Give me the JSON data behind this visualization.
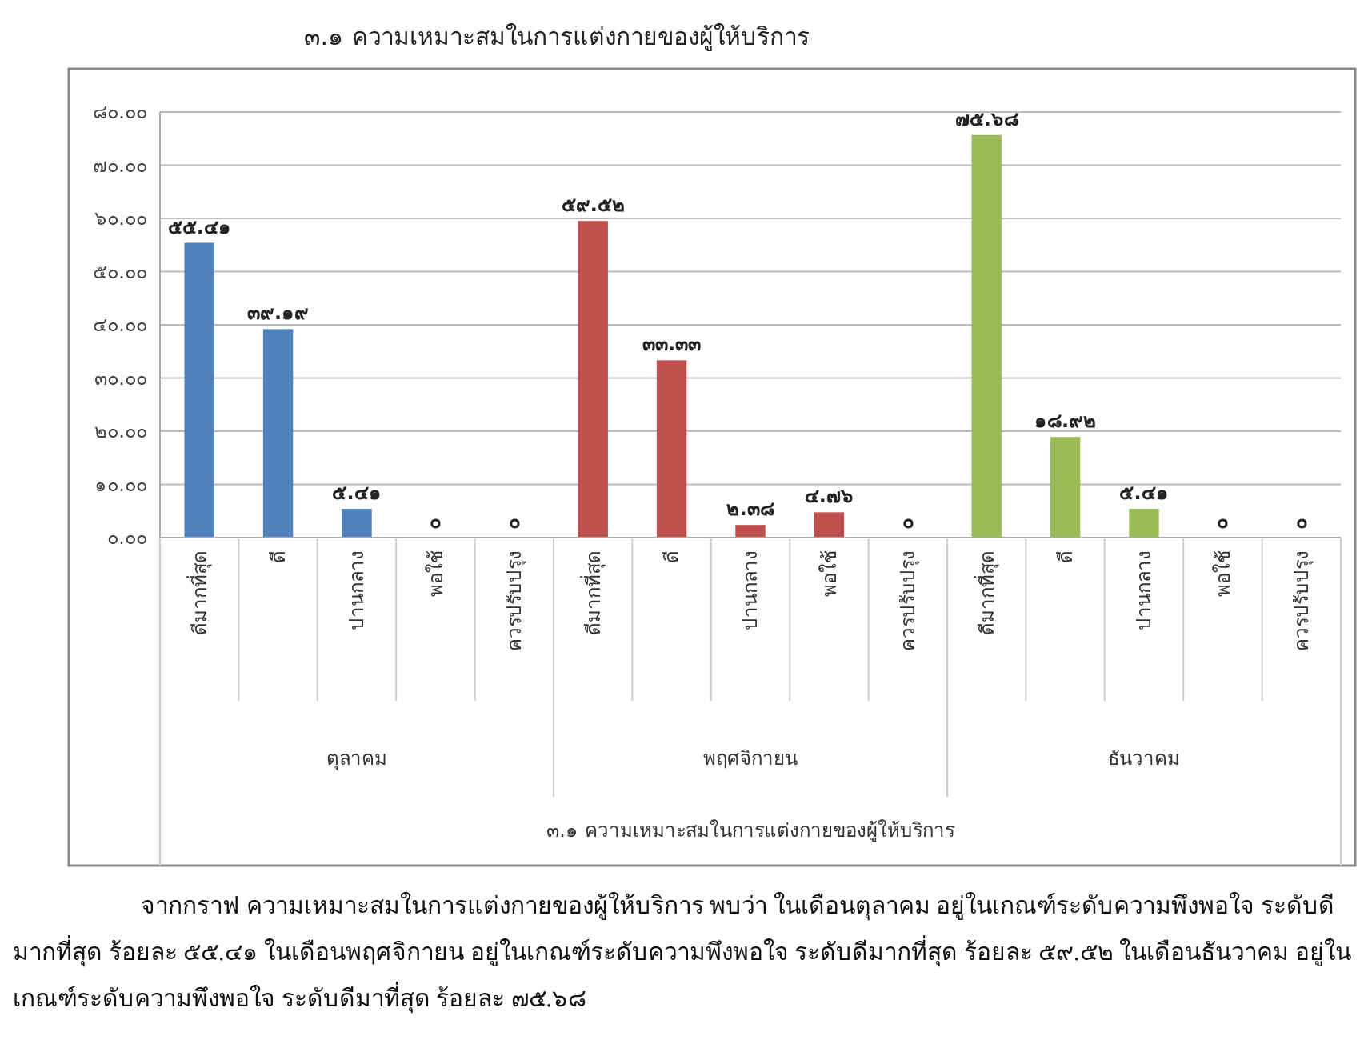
{
  "chart_data": {
    "type": "bar",
    "title": "๓.๑ ความเหมาะสมในการแต่งกายของผู้ให้บริการ",
    "categories": [
      "ดีมากที่สุด",
      "ดี",
      "ปานกลาง",
      "พอใช้",
      "ควรปรับปรุง",
      "ดีมากที่สุด",
      "ดี",
      "ปานกลาง",
      "พอใช้",
      "ควรปรับปรุง",
      "ดีมากที่สุด",
      "ดี",
      "ปานกลาง",
      "พอใช้",
      "ควรปรับปรุง"
    ],
    "values": [
      55.41,
      39.19,
      5.41,
      0,
      0,
      59.52,
      33.33,
      2.38,
      4.76,
      0,
      75.68,
      18.92,
      5.41,
      0,
      0
    ],
    "colors": [
      "#4f81bd",
      "#4f81bd",
      "#4f81bd",
      "#4f81bd",
      "#4f81bd",
      "#c0504d",
      "#c0504d",
      "#c0504d",
      "#c0504d",
      "#c0504d",
      "#9bbb59",
      "#9bbb59",
      "#9bbb59",
      "#9bbb59",
      "#9bbb59"
    ],
    "value_labels": [
      "๕๕.๔๑",
      "๓๙.๑๙",
      "๕.๔๑",
      "๐",
      "๐",
      "๕๙.๕๒",
      "๓๓.๓๓",
      "๒.๓๘",
      "๔.๗๖",
      "๐",
      "๗๕.๖๘",
      "๑๘.๙๒",
      "๕.๔๑",
      "๐",
      "๐"
    ],
    "ylim": [
      0,
      80
    ],
    "yticks": [
      {
        "value": 0,
        "label": "๐.๐๐"
      },
      {
        "value": 10,
        "label": "๑๐.๐๐"
      },
      {
        "value": 20,
        "label": "๒๐.๐๐"
      },
      {
        "value": 30,
        "label": "๓๐.๐๐"
      },
      {
        "value": 40,
        "label": "๔๐.๐๐"
      },
      {
        "value": 50,
        "label": "๕๐.๐๐"
      },
      {
        "value": 60,
        "label": "๖๐.๐๐"
      },
      {
        "value": 70,
        "label": "๗๐.๐๐"
      },
      {
        "value": 80,
        "label": "๘๐.๐๐"
      }
    ],
    "grid": "y",
    "annotations": [
      "ตุลาคม",
      "พฤศจิกายน",
      "ธันวาคม",
      "๓.๑ ความเหมาะสมในการแต่งกายของผู้ให้บริการ",
      "จากกราฟ ความเหมาะสมในการแต่งกายของผู้ให้บริการ พบว่า ในเดือนตุลาคม อยู่ในเกณฑ์ระดับความพึงพอใจ ระดับดีมากที่สุด ร้อยละ ๕๕.๔๑ ในเดือนพฤศจิกายน อยู่ในเกณฑ์ระดับความพึงพอใจ ระดับดีมากที่สุด ร้อยละ ๕๙.๕๒ ในเดือนธันวาคม อยู่ในเกณฑ์ระดับความพึงพอใจ ระดับดีมาที่สุด ร้อยละ ๗๕.๖๘"
    ]
  }
}
